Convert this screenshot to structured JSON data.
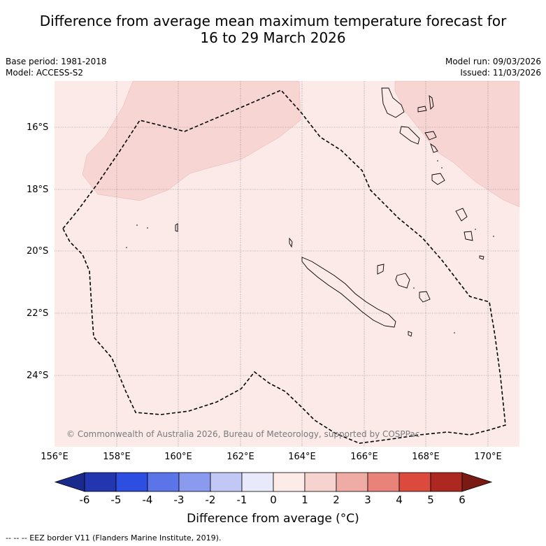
{
  "title": {
    "line1": "Difference from average mean maximum temperature forecast for",
    "line2": "16 to 29 March 2026"
  },
  "info_left": {
    "base_period": "Base period: 1981-2018",
    "model": "Model: ACCESS-S2"
  },
  "info_right": {
    "model_run": "Model run: 09/03/2026",
    "issued": "Issued: 11/03/2026"
  },
  "map": {
    "latitude_labels": [
      "16°S",
      "18°S",
      "20°S",
      "22°S",
      "24°S"
    ],
    "longitude_labels": [
      "156°E",
      "158°E",
      "160°E",
      "162°E",
      "164°E",
      "166°E",
      "168°E",
      "170°E"
    ],
    "copyright": "© Commonwealth of Australia 2026, Bureau of Meteorology, supported by COSPPac",
    "colors": {
      "anomaly_0_1": "#fceae8",
      "anomaly_1_2": "#f7d5d2",
      "coastline": "#000000",
      "eez": "#000000"
    }
  },
  "colorbar": {
    "tick_labels": [
      "-6",
      "-5",
      "-4",
      "-3",
      "-2",
      "-1",
      "0",
      "1",
      "2",
      "3",
      "4",
      "5",
      "6"
    ],
    "colors": [
      "#1a2a8c",
      "#2236b0",
      "#2d4ee0",
      "#5b75e8",
      "#8a9bef",
      "#c2c8f6",
      "#e8eafb",
      "#fcebe7",
      "#f7d3cf",
      "#efaca5",
      "#e98278",
      "#dc4a3d",
      "#ad2820",
      "#7a1a14"
    ],
    "title": "Difference from average (°C)"
  },
  "footnote": "-- -- -- EEZ border V11 (Flanders Marine Institute, 2019)."
}
